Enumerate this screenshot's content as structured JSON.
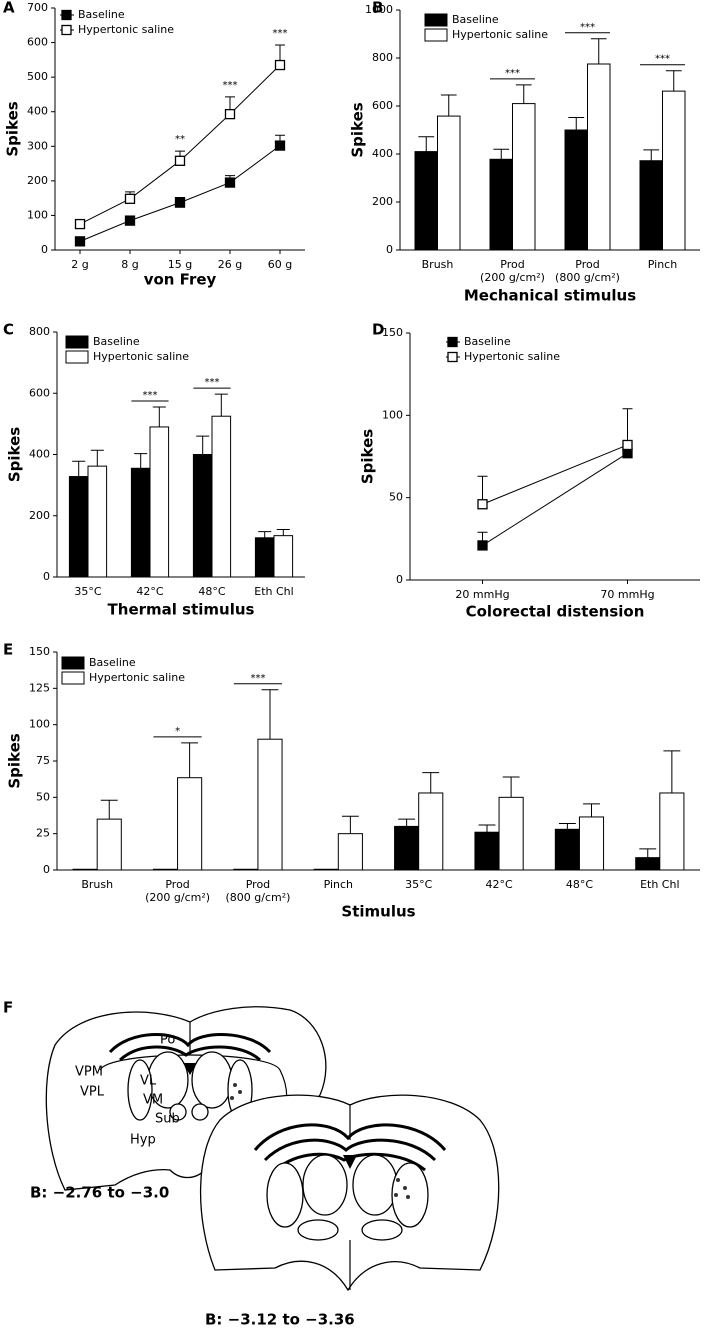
{
  "chart_data": [
    {
      "type": "line",
      "panel_label": "A",
      "categories": [
        "2 g",
        "8 g",
        "15 g",
        "26 g",
        "60 g"
      ],
      "series": [
        {
          "name": "Baseline",
          "color": "#000000",
          "values": [
            25,
            85,
            137,
            195,
            302
          ],
          "errors": [
            5,
            12,
            15,
            20,
            30
          ]
        },
        {
          "name": "Hypertonic saline",
          "color": "#ffffff",
          "values": [
            75,
            148,
            258,
            393,
            535
          ],
          "errors": [
            8,
            20,
            28,
            50,
            58
          ]
        }
      ],
      "significance": [
        null,
        null,
        "**",
        "***",
        "***"
      ],
      "ylim": [
        0,
        700
      ],
      "yticks": [
        0,
        100,
        200,
        300,
        400,
        500,
        600,
        700
      ],
      "y_label": "Spikes",
      "x_label": "von Frey"
    },
    {
      "type": "bar",
      "panel_label": "B",
      "categories": [
        "Brush",
        "Prod\n(200 g/cm²)",
        "Prod\n(800 g/cm²)",
        "Pinch"
      ],
      "series": [
        {
          "name": "Baseline",
          "color": "#000000",
          "values": [
            410,
            378,
            500,
            372
          ],
          "errors": [
            62,
            42,
            52,
            45
          ]
        },
        {
          "name": "Hypertonic saline",
          "color": "#ffffff",
          "values": [
            558,
            610,
            775,
            662
          ],
          "errors": [
            88,
            78,
            105,
            85
          ]
        }
      ],
      "significance": [
        null,
        "***",
        "***",
        "***"
      ],
      "ylim": [
        0,
        1000
      ],
      "yticks": [
        0,
        200,
        400,
        600,
        800,
        1000
      ],
      "y_label": "Spikes",
      "x_label": "Mechanical stimulus"
    },
    {
      "type": "bar",
      "panel_label": "C",
      "categories": [
        "35°C",
        "42°C",
        "48°C",
        "Eth Chl"
      ],
      "series": [
        {
          "name": "Baseline",
          "color": "#000000",
          "values": [
            328,
            355,
            400,
            128
          ],
          "errors": [
            50,
            48,
            60,
            20
          ]
        },
        {
          "name": "Hypertonic saline",
          "color": "#ffffff",
          "values": [
            362,
            490,
            525,
            135
          ],
          "errors": [
            52,
            65,
            72,
            20
          ]
        }
      ],
      "significance": [
        null,
        "***",
        "***",
        null
      ],
      "ylim": [
        0,
        800
      ],
      "yticks": [
        0,
        200,
        400,
        600,
        800
      ],
      "y_label": "Spikes",
      "x_label": "Thermal stimulus"
    },
    {
      "type": "line",
      "panel_label": "D",
      "categories": [
        "20 mmHg",
        "70 mmHg"
      ],
      "series": [
        {
          "name": "Baseline",
          "color": "#000000",
          "values": [
            21,
            77
          ],
          "errors": [
            8,
            3
          ]
        },
        {
          "name": "Hypertonic saline",
          "color": "#ffffff",
          "values": [
            46,
            82
          ],
          "errors": [
            17,
            22
          ]
        }
      ],
      "ylim": [
        0,
        150
      ],
      "yticks": [
        0,
        50,
        100,
        150
      ],
      "y_label": "Spikes",
      "x_label": "Colorectal distension"
    },
    {
      "type": "bar",
      "panel_label": "E",
      "categories": [
        "Brush",
        "Prod\n(200 g/cm²)",
        "Prod\n(800 g/cm²)",
        "Pinch",
        "35°C",
        "42°C",
        "48°C",
        "Eth Chl"
      ],
      "series": [
        {
          "name": "Baseline",
          "color": "#000000",
          "values": [
            0.5,
            0.5,
            0.5,
            0.5,
            30,
            26,
            28,
            8.5
          ],
          "errors": [
            null,
            null,
            null,
            null,
            5,
            5,
            4,
            6
          ]
        },
        {
          "name": "Hypertonic saline",
          "color": "#ffffff",
          "values": [
            35,
            63.5,
            90,
            25,
            53,
            50,
            36.5,
            53
          ],
          "errors": [
            13,
            24,
            34,
            12,
            14,
            14,
            9,
            29
          ]
        }
      ],
      "significance": [
        null,
        "*",
        "***",
        null,
        null,
        null,
        null,
        null
      ],
      "ylim": [
        0,
        150
      ],
      "yticks": [
        0,
        25,
        50,
        75,
        100,
        125,
        150
      ],
      "y_label": "Spikes",
      "x_label": "Stimulus"
    }
  ],
  "panel_f": {
    "label": "F",
    "regions": [
      "Po",
      "VPM",
      "VPL",
      "VL",
      "VM",
      "Sub",
      "Hyp"
    ],
    "sections": [
      "B: −2.76 to −3.0",
      "B: −3.12 to −3.36"
    ]
  }
}
